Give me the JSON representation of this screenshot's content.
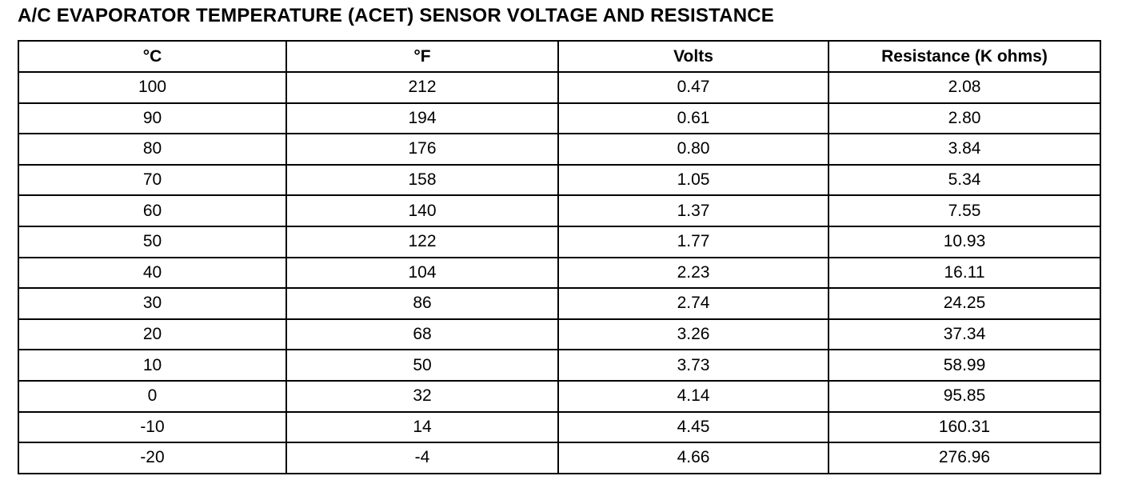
{
  "header": {
    "title": "A/C EVAPORATOR TEMPERATURE (ACET) SENSOR VOLTAGE AND RESISTANCE"
  },
  "table": {
    "columns": [
      "°C",
      "°F",
      "Volts",
      "Resistance (K ohms)"
    ],
    "rows": [
      [
        "100",
        "212",
        "0.47",
        "2.08"
      ],
      [
        "90",
        "194",
        "0.61",
        "2.80"
      ],
      [
        "80",
        "176",
        "0.80",
        "3.84"
      ],
      [
        "70",
        "158",
        "1.05",
        "5.34"
      ],
      [
        "60",
        "140",
        "1.37",
        "7.55"
      ],
      [
        "50",
        "122",
        "1.77",
        "10.93"
      ],
      [
        "40",
        "104",
        "2.23",
        "16.11"
      ],
      [
        "30",
        "86",
        "2.74",
        "24.25"
      ],
      [
        "20",
        "68",
        "3.26",
        "37.34"
      ],
      [
        "10",
        "50",
        "3.73",
        "58.99"
      ],
      [
        "0",
        "32",
        "4.14",
        "95.85"
      ],
      [
        "-10",
        "14",
        "4.45",
        "160.31"
      ],
      [
        "-20",
        "-4",
        "4.66",
        "276.96"
      ]
    ]
  }
}
